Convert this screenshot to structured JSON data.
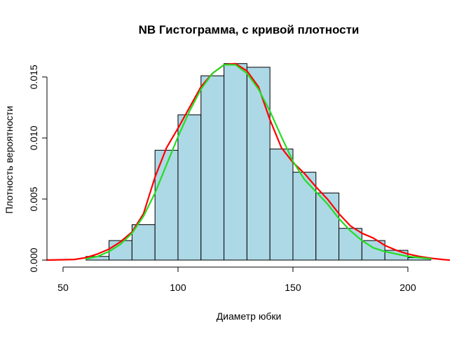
{
  "chart_data": {
    "type": "bar",
    "title": "NB Гистограмма, с кривой плотности",
    "xlabel": "Диаметр юбки",
    "ylabel": "Плотность вероятности",
    "xlim": [
      43,
      218
    ],
    "ylim": [
      0,
      0.0166
    ],
    "x_ticks": [
      {
        "value": 50,
        "label": "50"
      },
      {
        "value": 100,
        "label": "100"
      },
      {
        "value": 150,
        "label": "150"
      },
      {
        "value": 200,
        "label": "200"
      }
    ],
    "y_ticks": [
      {
        "value": 0.0,
        "label": "0.000"
      },
      {
        "value": 0.005,
        "label": "0.005"
      },
      {
        "value": 0.01,
        "label": "0.010"
      },
      {
        "value": 0.015,
        "label": "0.015"
      }
    ],
    "bins": [
      {
        "from": 60,
        "to": 70,
        "value": 0.0003
      },
      {
        "from": 70,
        "to": 80,
        "value": 0.0016
      },
      {
        "from": 80,
        "to": 90,
        "value": 0.0029
      },
      {
        "from": 90,
        "to": 100,
        "value": 0.009
      },
      {
        "from": 100,
        "to": 110,
        "value": 0.0119
      },
      {
        "from": 110,
        "to": 120,
        "value": 0.0151
      },
      {
        "from": 120,
        "to": 130,
        "value": 0.0161
      },
      {
        "from": 130,
        "to": 140,
        "value": 0.0158
      },
      {
        "from": 140,
        "to": 150,
        "value": 0.0091
      },
      {
        "from": 150,
        "to": 160,
        "value": 0.0072
      },
      {
        "from": 160,
        "to": 170,
        "value": 0.0055
      },
      {
        "from": 170,
        "to": 180,
        "value": 0.0026
      },
      {
        "from": 180,
        "to": 190,
        "value": 0.0016
      },
      {
        "from": 190,
        "to": 200,
        "value": 0.0008
      },
      {
        "from": 200,
        "to": 210,
        "value": 0.0002
      }
    ],
    "series": [
      {
        "color": "#ff0000",
        "x": [
          43,
          55,
          60,
          65,
          70,
          75,
          80,
          85,
          90,
          95,
          100,
          105,
          110,
          115,
          120,
          125,
          130,
          135,
          140,
          145,
          150,
          155,
          160,
          165,
          170,
          175,
          180,
          185,
          190,
          195,
          200,
          205,
          210,
          215,
          218
        ],
        "y": [
          0.0,
          5e-05,
          0.0002,
          0.0005,
          0.0009,
          0.0015,
          0.0023,
          0.0038,
          0.0068,
          0.0092,
          0.0108,
          0.0125,
          0.0142,
          0.0153,
          0.016,
          0.0161,
          0.0155,
          0.0142,
          0.0115,
          0.0092,
          0.008,
          0.0071,
          0.006,
          0.005,
          0.0038,
          0.0028,
          0.0022,
          0.0018,
          0.0012,
          0.0008,
          0.0005,
          0.0003,
          0.00015,
          5e-05,
          0.0
        ]
      },
      {
        "color": "#22dd22",
        "x": [
          60,
          65,
          70,
          75,
          80,
          85,
          90,
          95,
          100,
          105,
          110,
          115,
          120,
          125,
          130,
          135,
          140,
          145,
          150,
          155,
          160,
          165,
          170,
          175,
          180,
          185,
          190,
          195,
          200,
          205,
          210
        ],
        "y": [
          0.0001,
          0.0003,
          0.0007,
          0.0013,
          0.0022,
          0.0036,
          0.0055,
          0.0078,
          0.0101,
          0.0122,
          0.014,
          0.0153,
          0.016,
          0.016,
          0.0153,
          0.014,
          0.0122,
          0.0101,
          0.0081,
          0.0066,
          0.0056,
          0.0046,
          0.0034,
          0.0024,
          0.0016,
          0.001,
          0.0007,
          0.0005,
          0.0003,
          0.0002,
          0.0001
        ]
      }
    ]
  }
}
